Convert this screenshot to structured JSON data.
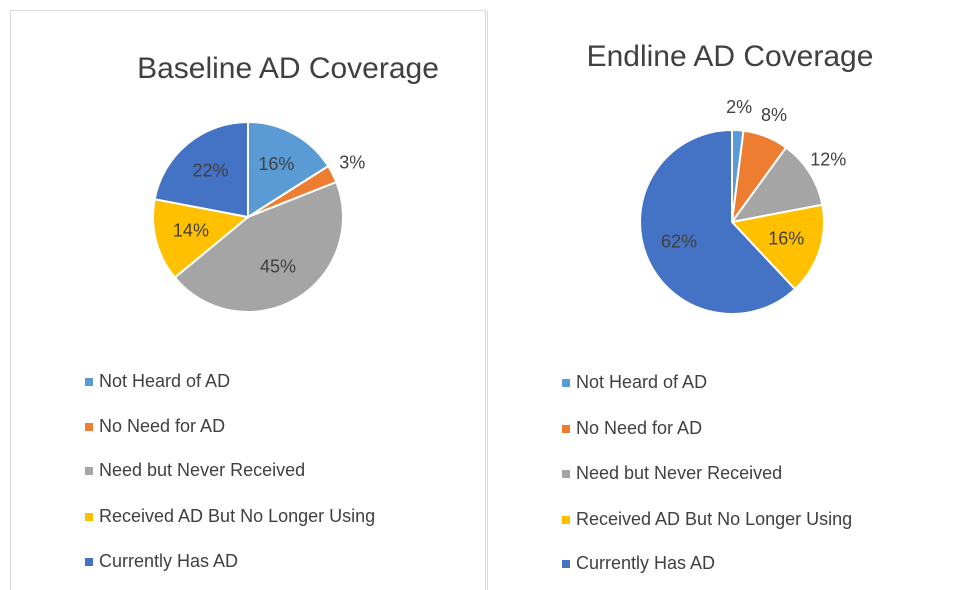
{
  "chart_data": [
    {
      "type": "pie",
      "title": "Baseline AD Coverage",
      "categories": [
        "Not Heard of AD",
        "No Need for AD",
        "Need but Never Received",
        "Received AD But No Longer Using",
        "Currently Has AD"
      ],
      "values": [
        16,
        3,
        45,
        14,
        22
      ],
      "value_labels": [
        "16%",
        "3%",
        "45%",
        "14%",
        "22%"
      ],
      "colors": [
        "#5b9bd5",
        "#ed7d31",
        "#a5a5a5",
        "#ffc000",
        "#4472c4"
      ]
    },
    {
      "type": "pie",
      "title": "Endline AD Coverage",
      "categories": [
        "Not Heard of AD",
        "No Need for AD",
        "Need but Never Received",
        "Received AD But No Longer Using",
        "Currently Has AD"
      ],
      "values": [
        2,
        8,
        12,
        16,
        62
      ],
      "value_labels": [
        "2%",
        "8%",
        "12%",
        "16%",
        "62%"
      ],
      "colors": [
        "#5b9bd5",
        "#ed7d31",
        "#a5a5a5",
        "#ffc000",
        "#4472c4"
      ]
    }
  ]
}
